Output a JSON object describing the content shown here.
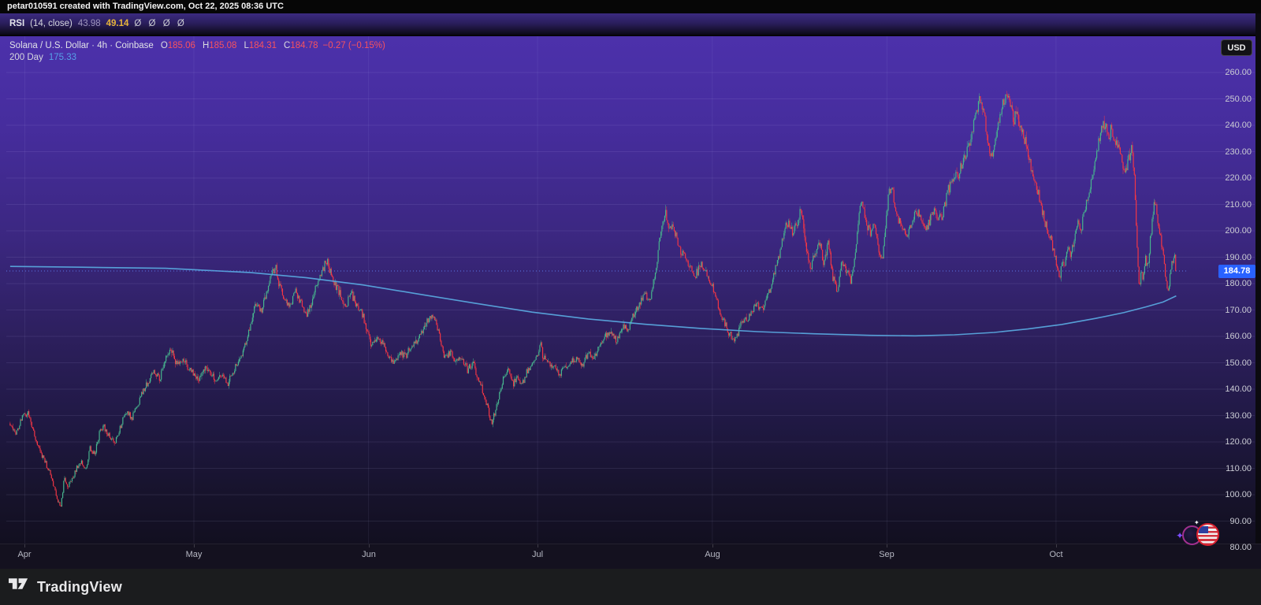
{
  "top_bar": {
    "text": "petar010591 created with TradingView.com, Oct 22, 2025 08:36 UTC"
  },
  "rsi_pane": {
    "title": "RSI",
    "params": "(14, close)",
    "ma_value": "43.98",
    "value": "49.14",
    "empty_values": "Ø Ø Ø Ø",
    "value_color": "#e7b43a",
    "ma_color": "#9d94bb"
  },
  "legend": {
    "symbol": "Solana / U.S. Dollar · 4h · Coinbase",
    "o_label": "O",
    "o": "185.06",
    "h_label": "H",
    "h": "185.08",
    "l_label": "L",
    "l": "184.31",
    "c_label": "C",
    "c": "184.78",
    "change": "−0.27 (−0.15%)",
    "ohlc_color": "#f7525f",
    "ma_label": "200 Day",
    "ma_value": "175.33",
    "ma_color": "#56a0e8"
  },
  "price_axis": {
    "currency": "USD",
    "last_price": "184.78",
    "last_price_bg": "#2962ff"
  },
  "footer": {
    "brand": "TradingView"
  },
  "chart_data": {
    "type": "candlestick",
    "title": "Solana / U.S. Dollar",
    "symbol": "SOL/USD",
    "interval": "4h",
    "exchange": "Coinbase",
    "year": 2025,
    "ohlc_last": {
      "open": 185.06,
      "high": 185.08,
      "low": 184.31,
      "close": 184.78,
      "change": -0.27,
      "change_pct": -0.15
    },
    "last": 184.78,
    "up_color": "#47b48e",
    "down_color": "#f23645",
    "price_line_color": "#5b77e8",
    "grid": true,
    "y_axis": {
      "ticks": [
        260,
        250,
        240,
        230,
        220,
        210,
        200,
        190,
        180,
        170,
        160,
        150,
        140,
        130,
        120,
        110,
        100,
        90,
        80
      ],
      "visible_range": [
        82,
        273
      ]
    },
    "x_axis": {
      "months": [
        {
          "label": "Apr",
          "day": 0
        },
        {
          "label": "May",
          "day": 30
        },
        {
          "label": "Jun",
          "day": 61
        },
        {
          "label": "Jul",
          "day": 91
        },
        {
          "label": "Aug",
          "day": 122
        },
        {
          "label": "Sep",
          "day": 153
        },
        {
          "label": "Oct",
          "day": 183
        }
      ],
      "days_span": [
        -2.6,
        204.33
      ]
    },
    "rsi": {
      "length": 14,
      "source": "close",
      "value": 49.14,
      "ma_value": 43.98
    },
    "ma200": {
      "label": "200 Day",
      "last": 175.33,
      "color": "#58a6dd",
      "waypoints": [
        [
          -2.6,
          186.5
        ],
        [
          10,
          186.2
        ],
        [
          25,
          185.8
        ],
        [
          40,
          184.2
        ],
        [
          50,
          182.2
        ],
        [
          60,
          179.5
        ],
        [
          70,
          176
        ],
        [
          80,
          172.5
        ],
        [
          90,
          169.2
        ],
        [
          100,
          166.6
        ],
        [
          110,
          164.6
        ],
        [
          120,
          163
        ],
        [
          130,
          161.8
        ],
        [
          140,
          161
        ],
        [
          150,
          160.4
        ],
        [
          158,
          160.2
        ],
        [
          165,
          160.6
        ],
        [
          172,
          161.5
        ],
        [
          178,
          162.8
        ],
        [
          184,
          164.5
        ],
        [
          190,
          166.8
        ],
        [
          195,
          169
        ],
        [
          199,
          171.2
        ],
        [
          202,
          173
        ],
        [
          204.33,
          175.33
        ]
      ]
    },
    "price_waypoints": [
      [
        -2.6,
        127
      ],
      [
        -1.5,
        123
      ],
      [
        -0.5,
        129
      ],
      [
        0.5,
        131
      ],
      [
        1.5,
        125
      ],
      [
        2.5,
        117
      ],
      [
        3.5,
        113
      ],
      [
        4.5,
        108
      ],
      [
        5.5,
        101
      ],
      [
        6,
        97
      ],
      [
        6.4,
        95
      ],
      [
        7,
        107
      ],
      [
        7.6,
        103
      ],
      [
        8.4,
        106
      ],
      [
        9.2,
        110
      ],
      [
        10,
        113
      ],
      [
        10.8,
        109
      ],
      [
        11.6,
        118
      ],
      [
        12.4,
        115
      ],
      [
        13.2,
        123
      ],
      [
        14,
        126
      ],
      [
        15,
        122
      ],
      [
        16,
        120
      ],
      [
        17,
        126
      ],
      [
        18,
        132
      ],
      [
        19,
        129
      ],
      [
        20,
        134
      ],
      [
        21,
        139
      ],
      [
        22,
        143
      ],
      [
        23,
        147
      ],
      [
        24,
        144
      ],
      [
        25,
        152
      ],
      [
        26,
        155
      ],
      [
        27,
        149
      ],
      [
        28,
        152
      ],
      [
        29,
        148
      ],
      [
        30,
        146
      ],
      [
        31,
        144
      ],
      [
        32,
        148
      ],
      [
        33,
        146
      ],
      [
        34,
        143
      ],
      [
        35,
        146
      ],
      [
        36,
        142
      ],
      [
        37,
        147
      ],
      [
        38,
        151
      ],
      [
        39,
        156
      ],
      [
        40,
        164
      ],
      [
        41,
        172
      ],
      [
        42,
        169
      ],
      [
        43,
        178
      ],
      [
        44,
        184
      ],
      [
        44.5,
        187
      ],
      [
        45,
        181
      ],
      [
        46,
        174
      ],
      [
        47,
        171
      ],
      [
        48,
        177
      ],
      [
        49,
        173
      ],
      [
        50,
        168
      ],
      [
        51,
        173
      ],
      [
        52,
        181
      ],
      [
        53,
        186
      ],
      [
        53.6,
        189
      ],
      [
        54.3,
        184
      ],
      [
        55,
        180
      ],
      [
        56,
        176
      ],
      [
        57,
        172
      ],
      [
        58,
        176
      ],
      [
        59,
        171
      ],
      [
        60,
        168
      ],
      [
        61,
        160
      ],
      [
        61.5,
        157
      ],
      [
        62.5,
        160
      ],
      [
        63.5,
        158
      ],
      [
        64.5,
        152
      ],
      [
        65.5,
        150
      ],
      [
        66.5,
        154
      ],
      [
        67.5,
        152
      ],
      [
        68.5,
        156
      ],
      [
        69.5,
        158
      ],
      [
        70.5,
        162
      ],
      [
        71.5,
        166
      ],
      [
        72.5,
        168
      ],
      [
        73.5,
        161
      ],
      [
        74.5,
        152
      ],
      [
        75.5,
        154
      ],
      [
        76.5,
        151
      ],
      [
        77.5,
        153
      ],
      [
        78.5,
        147
      ],
      [
        79.5,
        150
      ],
      [
        80.5,
        144
      ],
      [
        81.5,
        138
      ],
      [
        82.2,
        133
      ],
      [
        82.8,
        127
      ],
      [
        83.4,
        131
      ],
      [
        84.2,
        138
      ],
      [
        85,
        145
      ],
      [
        85.8,
        147
      ],
      [
        86.6,
        142
      ],
      [
        87.4,
        144
      ],
      [
        88.2,
        141
      ],
      [
        89,
        146
      ],
      [
        90,
        150
      ],
      [
        91,
        153
      ],
      [
        91.5,
        157
      ],
      [
        92,
        152
      ],
      [
        93,
        150
      ],
      [
        94,
        148
      ],
      [
        95,
        146
      ],
      [
        96,
        148
      ],
      [
        97,
        150
      ],
      [
        98,
        152
      ],
      [
        99,
        149
      ],
      [
        100,
        154
      ],
      [
        101,
        151
      ],
      [
        102,
        157
      ],
      [
        103,
        160
      ],
      [
        104,
        162
      ],
      [
        105,
        158
      ],
      [
        106,
        164
      ],
      [
        107,
        162
      ],
      [
        108,
        168
      ],
      [
        109,
        172
      ],
      [
        110,
        176
      ],
      [
        111,
        174
      ],
      [
        112,
        186
      ],
      [
        112.6,
        196
      ],
      [
        113.2,
        203
      ],
      [
        113.7,
        207
      ],
      [
        114.3,
        200
      ],
      [
        115,
        203
      ],
      [
        116,
        194
      ],
      [
        117,
        190
      ],
      [
        118,
        186
      ],
      [
        119,
        183
      ],
      [
        120,
        187
      ],
      [
        121,
        184
      ],
      [
        122,
        179
      ],
      [
        123,
        172
      ],
      [
        124,
        166
      ],
      [
        125,
        161
      ],
      [
        126,
        158
      ],
      [
        127,
        164
      ],
      [
        128,
        166
      ],
      [
        129,
        169
      ],
      [
        130,
        172
      ],
      [
        131,
        170
      ],
      [
        132,
        176
      ],
      [
        133,
        184
      ],
      [
        134,
        192
      ],
      [
        134.8,
        200
      ],
      [
        135.6,
        204
      ],
      [
        136.4,
        199
      ],
      [
        137.2,
        204
      ],
      [
        137.8,
        208
      ],
      [
        138.4,
        198
      ],
      [
        139,
        190
      ],
      [
        139.5,
        185
      ],
      [
        140.2,
        192
      ],
      [
        141,
        196
      ],
      [
        141.8,
        188
      ],
      [
        142.6,
        195
      ],
      [
        143.4,
        182
      ],
      [
        144.2,
        177
      ],
      [
        145,
        189
      ],
      [
        145.8,
        185
      ],
      [
        146.6,
        181
      ],
      [
        147.4,
        193
      ],
      [
        148,
        205
      ],
      [
        148.5,
        211
      ],
      [
        149.2,
        204
      ],
      [
        150,
        199
      ],
      [
        150.8,
        203
      ],
      [
        151.6,
        192
      ],
      [
        152.2,
        188
      ],
      [
        152.7,
        200
      ],
      [
        153,
        208
      ],
      [
        153.4,
        215
      ],
      [
        153.8,
        217
      ],
      [
        154.4,
        210
      ],
      [
        155,
        205
      ],
      [
        155.8,
        200
      ],
      [
        156.6,
        197
      ],
      [
        157.4,
        203
      ],
      [
        158.2,
        208
      ],
      [
        159,
        204
      ],
      [
        159.8,
        200
      ],
      [
        160.6,
        204
      ],
      [
        161.4,
        208
      ],
      [
        162.2,
        204
      ],
      [
        163,
        207
      ],
      [
        163.8,
        215
      ],
      [
        164.8,
        219
      ],
      [
        165.8,
        222
      ],
      [
        166.6,
        227
      ],
      [
        167.3,
        231
      ],
      [
        168,
        236
      ],
      [
        168.7,
        244
      ],
      [
        169.4,
        250
      ],
      [
        170.1,
        246
      ],
      [
        170.8,
        236
      ],
      [
        171.5,
        227
      ],
      [
        172.2,
        233
      ],
      [
        172.9,
        241
      ],
      [
        173.6,
        248
      ],
      [
        174.2,
        253
      ],
      [
        174.9,
        248
      ],
      [
        175.5,
        242
      ],
      [
        176.1,
        245
      ],
      [
        176.7,
        238
      ],
      [
        177.4,
        235
      ],
      [
        178.1,
        229
      ],
      [
        178.8,
        222
      ],
      [
        179.5,
        216
      ],
      [
        180.2,
        212
      ],
      [
        180.9,
        204
      ],
      [
        181.5,
        200
      ],
      [
        182.1,
        197
      ],
      [
        182.7,
        191
      ],
      [
        183.3,
        186
      ],
      [
        183.7,
        182
      ],
      [
        184.1,
        190
      ],
      [
        184.6,
        187
      ],
      [
        185.1,
        194
      ],
      [
        185.7,
        191
      ],
      [
        186.3,
        198
      ],
      [
        186.9,
        204
      ],
      [
        187.5,
        201
      ],
      [
        188.1,
        208
      ],
      [
        188.7,
        214
      ],
      [
        189.3,
        220
      ],
      [
        189.9,
        227
      ],
      [
        190.5,
        233
      ],
      [
        191.1,
        238
      ],
      [
        191.7,
        241
      ],
      [
        192.3,
        236
      ],
      [
        192.9,
        239
      ],
      [
        193.5,
        231
      ],
      [
        194.1,
        235
      ],
      [
        194.7,
        227
      ],
      [
        195.3,
        222
      ],
      [
        195.9,
        227
      ],
      [
        196.4,
        231
      ],
      [
        196.9,
        222
      ],
      [
        197.2,
        204
      ],
      [
        197.5,
        190
      ],
      [
        197.8,
        178
      ],
      [
        198.1,
        186
      ],
      [
        198.5,
        182
      ],
      [
        198.9,
        189
      ],
      [
        199.3,
        186
      ],
      [
        199.7,
        196
      ],
      [
        200.1,
        204
      ],
      [
        200.5,
        211
      ],
      [
        200.9,
        207
      ],
      [
        201.3,
        200
      ],
      [
        201.7,
        195
      ],
      [
        202.1,
        189
      ],
      [
        202.5,
        182
      ],
      [
        202.9,
        178
      ],
      [
        203.3,
        184
      ],
      [
        203.7,
        189
      ],
      [
        204,
        192
      ],
      [
        204.33,
        184.78
      ]
    ]
  }
}
